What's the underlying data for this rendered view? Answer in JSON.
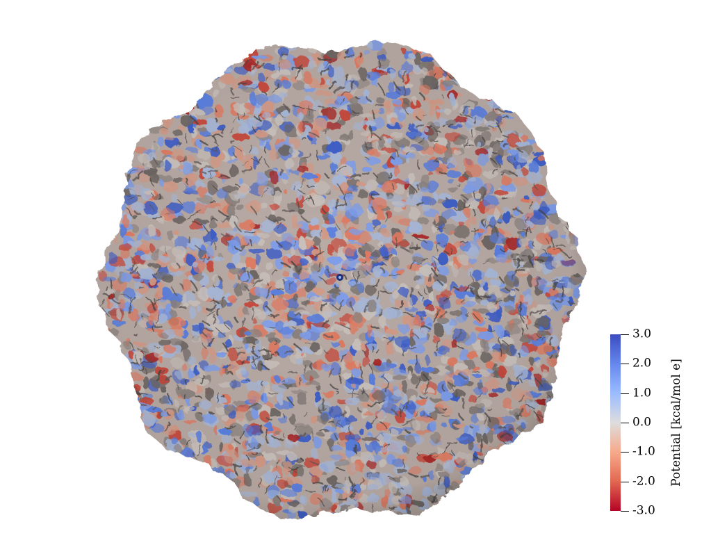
{
  "colorbar": {
    "title": "Potential [kcal/mol e]",
    "range": [
      -3.0,
      3.0
    ],
    "colormap": "coolwarm",
    "color_max": "#3b4cc0",
    "color_mid": "#dddddd",
    "color_min": "#b40426",
    "ticks": [
      {
        "label": "3.0",
        "value": 3.0
      },
      {
        "label": "2.0",
        "value": 2.0
      },
      {
        "label": "1.0",
        "value": 1.0
      },
      {
        "label": "0.0",
        "value": 0.0
      },
      {
        "label": "-1.0",
        "value": -1.0
      },
      {
        "label": "-2.0",
        "value": -2.0
      },
      {
        "label": "-3.0",
        "value": -3.0
      }
    ]
  },
  "render": {
    "subject": "capsid-surface-electrostatic-potential",
    "background": "#ffffff"
  }
}
